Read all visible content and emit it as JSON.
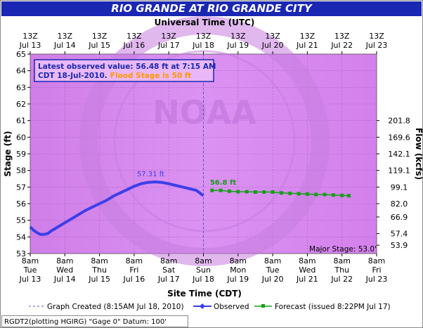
{
  "title": "RIO GRANDE AT RIO GRANDE CITY",
  "top_axis_title": "Universal Time (UTC)",
  "bottom_axis_title": "Site Time (CDT)",
  "left_axis_title": "Stage (ft)",
  "right_axis_title": "Flow (kcfs)",
  "info_box": {
    "line1": "Latest observed value: 56.48 ft at 7:15 AM",
    "line2a": "CDT 18-Jul-2010.",
    "line2b": "Flood Stage is 50 ft"
  },
  "major_stage_label": "Major Stage: 53.0'",
  "peak_label": "57.31 ft",
  "forecast_start_label": "56.8 ft",
  "watermark_text": "NOAA",
  "legend": {
    "created": "Graph Created (8:15AM Jul 18, 2010)",
    "observed": "Observed",
    "forecast": "Forecast (issued 8:22PM Jul 17)"
  },
  "footer": "RGDT2(plotting HGIRG) \"Gage 0\" Datum: 100'",
  "colors": {
    "title_bg": "#1a27b3",
    "plot_bg": "#d98ef0",
    "observed": "#3b3fe8",
    "forecast": "#14a014",
    "flood_text": "#ff9900",
    "info_border": "#1a27b3"
  },
  "chart_data": {
    "type": "line",
    "x_unit": "days since Jul 13 8am CDT",
    "xlim": [
      0,
      10
    ],
    "ylim": [
      53,
      65
    ],
    "yticks": [
      53,
      54,
      55,
      56,
      57,
      58,
      59,
      60,
      61,
      62,
      63,
      64,
      65
    ],
    "right_ticks": [
      {
        "stage": 53.5,
        "flow": "53.9"
      },
      {
        "stage": 54.2,
        "flow": "57.4"
      },
      {
        "stage": 55.2,
        "flow": "66.9"
      },
      {
        "stage": 56.0,
        "flow": "82.0"
      },
      {
        "stage": 57.0,
        "flow": "99.1"
      },
      {
        "stage": 58.0,
        "flow": "119.1"
      },
      {
        "stage": 59.0,
        "flow": "142.1"
      },
      {
        "stage": 60.0,
        "flow": "169.6"
      },
      {
        "stage": 61.0,
        "flow": "201.8"
      }
    ],
    "bottom_ticks": [
      {
        "t": "8am",
        "d": "Tue",
        "m": "Jul 13"
      },
      {
        "t": "8am",
        "d": "Wed",
        "m": "Jul 14"
      },
      {
        "t": "8am",
        "d": "Thu",
        "m": "Jul 15"
      },
      {
        "t": "8am",
        "d": "Fri",
        "m": "Jul 16"
      },
      {
        "t": "8am",
        "d": "Sat",
        "m": "Jul 17"
      },
      {
        "t": "8am",
        "d": "Sun",
        "m": "Jul 18"
      },
      {
        "t": "8am",
        "d": "Mon",
        "m": "Jul 19"
      },
      {
        "t": "8am",
        "d": "Tue",
        "m": "Jul 20"
      },
      {
        "t": "8am",
        "d": "Wed",
        "m": "Jul 21"
      },
      {
        "t": "8am",
        "d": "Thu",
        "m": "Jul 22"
      },
      {
        "t": "8am",
        "d": "Fri",
        "m": "Jul 23"
      }
    ],
    "top_ticks": [
      {
        "t": "13Z",
        "m": "Jul 13"
      },
      {
        "t": "13Z",
        "m": "Jul 14"
      },
      {
        "t": "13Z",
        "m": "Jul 15"
      },
      {
        "t": "13Z",
        "m": "Jul 16"
      },
      {
        "t": "13Z",
        "m": "Jul 17"
      },
      {
        "t": "13Z",
        "m": "Jul 18"
      },
      {
        "t": "13Z",
        "m": "Jul 19"
      },
      {
        "t": "13Z",
        "m": "Jul 20"
      },
      {
        "t": "13Z",
        "m": "Jul 21"
      },
      {
        "t": "13Z",
        "m": "Jul 22"
      },
      {
        "t": "13Z",
        "m": "Jul 23"
      }
    ],
    "observed": [
      [
        0.0,
        54.6
      ],
      [
        0.1,
        54.4
      ],
      [
        0.2,
        54.25
      ],
      [
        0.3,
        54.15
      ],
      [
        0.4,
        54.15
      ],
      [
        0.5,
        54.2
      ],
      [
        0.6,
        54.35
      ],
      [
        0.8,
        54.6
      ],
      [
        1.0,
        54.85
      ],
      [
        1.2,
        55.1
      ],
      [
        1.4,
        55.35
      ],
      [
        1.6,
        55.6
      ],
      [
        1.8,
        55.8
      ],
      [
        2.0,
        56.0
      ],
      [
        2.2,
        56.2
      ],
      [
        2.4,
        56.45
      ],
      [
        2.6,
        56.65
      ],
      [
        2.8,
        56.85
      ],
      [
        3.0,
        57.05
      ],
      [
        3.2,
        57.2
      ],
      [
        3.4,
        57.28
      ],
      [
        3.6,
        57.31
      ],
      [
        3.8,
        57.28
      ],
      [
        4.0,
        57.2
      ],
      [
        4.2,
        57.1
      ],
      [
        4.4,
        57.0
      ],
      [
        4.6,
        56.9
      ],
      [
        4.8,
        56.8
      ],
      [
        5.0,
        56.48
      ]
    ],
    "forecast": [
      [
        5.25,
        56.8
      ],
      [
        5.5,
        56.8
      ],
      [
        5.75,
        56.75
      ],
      [
        6.0,
        56.72
      ],
      [
        6.25,
        56.72
      ],
      [
        6.5,
        56.7
      ],
      [
        6.75,
        56.7
      ],
      [
        7.0,
        56.7
      ],
      [
        7.25,
        56.65
      ],
      [
        7.5,
        56.62
      ],
      [
        7.75,
        56.6
      ],
      [
        8.0,
        56.58
      ],
      [
        8.25,
        56.55
      ],
      [
        8.5,
        56.55
      ],
      [
        8.75,
        56.52
      ],
      [
        9.0,
        56.5
      ],
      [
        9.2,
        56.48
      ]
    ],
    "created_x": 5.0,
    "peak": [
      3.6,
      57.31
    ],
    "major_stage": 53.0,
    "flood_stage": 50
  }
}
